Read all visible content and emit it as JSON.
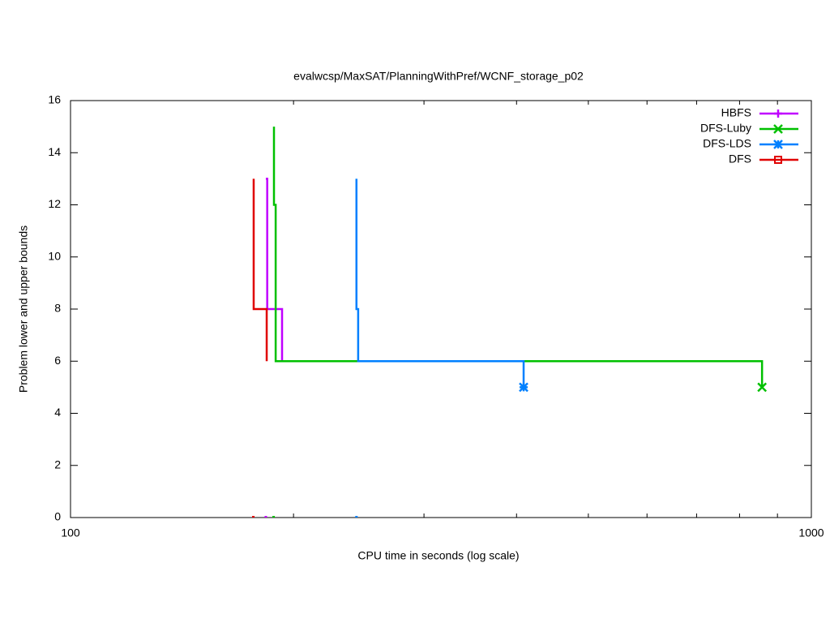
{
  "chart_data": {
    "type": "line",
    "title": "evalwcsp/MaxSAT/PlanningWithPref/WCNF_storage_p02",
    "x_label": "CPU time in seconds (log scale)",
    "y_label": "Problem lower and upper bounds",
    "x_log": true,
    "xlim": [
      100,
      1000
    ],
    "xticks": [
      100,
      1000
    ],
    "xminorticks": [
      200,
      300,
      400,
      500,
      600,
      700,
      800,
      900
    ],
    "ylim": [
      0,
      16
    ],
    "yticks": [
      0,
      2,
      4,
      6,
      8,
      10,
      12,
      14,
      16
    ],
    "legend": "top-right",
    "series": [
      {
        "name": "HBFS",
        "color": "#c000ff",
        "marker": "plus",
        "x": [
          183.5,
          184.3,
          184.3,
          193.0,
          193.0
        ],
        "values": [
          13,
          13,
          8,
          8,
          6
        ],
        "lower_x": [
          183.5
        ],
        "lower_values": [
          0
        ]
      },
      {
        "name": "DFS-Luby",
        "color": "#00c000",
        "marker": "cross",
        "x": [
          188.2,
          188.2,
          189.2,
          189.2,
          857.9,
          857.9
        ],
        "values": [
          15,
          12,
          12,
          6,
          6,
          5
        ],
        "lower_x": [
          188.0
        ],
        "lower_values": [
          0
        ]
      },
      {
        "name": "DFS-LDS",
        "color": "#0080ff",
        "marker": "star",
        "x": [
          243.2,
          243.2,
          244.5,
          244.5,
          408.9,
          408.9
        ],
        "values": [
          13,
          8,
          8,
          6,
          6,
          5
        ],
        "lower_x": [
          243.2
        ],
        "lower_values": [
          0
        ]
      },
      {
        "name": "DFS",
        "color": "#e00000",
        "marker": "square",
        "x": [
          176.7,
          176.7,
          184.0,
          184.0
        ],
        "values": [
          13,
          8,
          8,
          6
        ],
        "lower_x": [
          176.5
        ],
        "lower_values": [
          0
        ]
      }
    ]
  }
}
